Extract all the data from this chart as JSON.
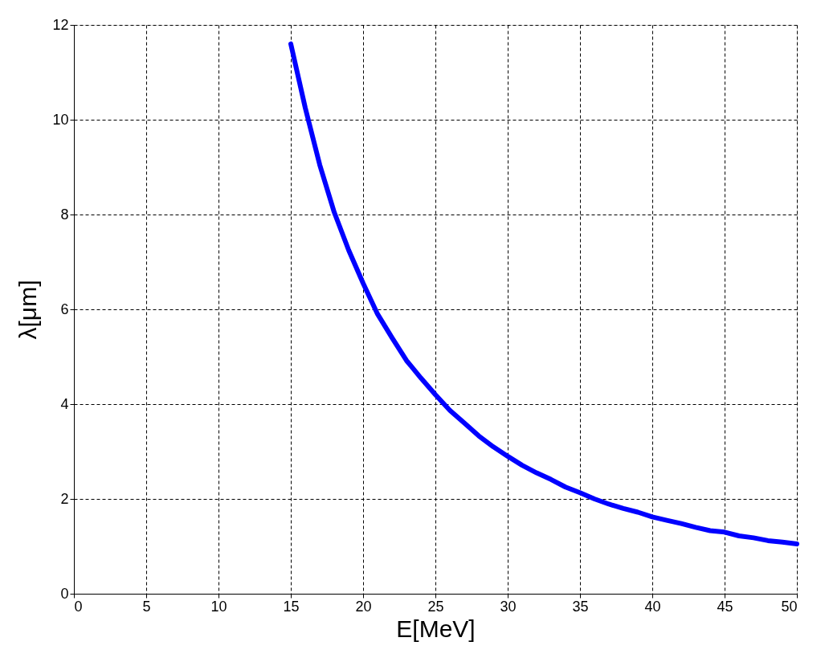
{
  "chart_data": {
    "type": "line",
    "xlabel": "E[MeV]",
    "ylabel": "λ[μm]",
    "x": [
      15,
      16,
      17,
      18,
      19,
      20,
      21,
      22,
      23,
      24,
      25,
      26,
      27,
      28,
      29,
      30,
      31,
      32,
      33,
      34,
      35,
      36,
      37,
      38,
      39,
      40,
      41,
      42,
      43,
      44,
      45,
      46,
      47,
      48,
      49,
      50
    ],
    "series": [
      {
        "color": "#0000ff",
        "values": [
          11.6,
          10.25,
          9.05,
          8.05,
          7.25,
          6.55,
          5.9,
          5.4,
          4.92,
          4.55,
          4.2,
          3.87,
          3.6,
          3.33,
          3.1,
          2.9,
          2.71,
          2.55,
          2.41,
          2.25,
          2.13,
          2.0,
          1.89,
          1.8,
          1.72,
          1.62,
          1.55,
          1.48,
          1.4,
          1.33,
          1.3,
          1.22,
          1.18,
          1.12,
          1.09,
          1.05
        ]
      }
    ],
    "xlim": [
      0,
      50
    ],
    "xticks": [
      0,
      5,
      10,
      15,
      20,
      25,
      30,
      35,
      40,
      45,
      50
    ],
    "ylim": [
      0,
      12
    ],
    "yticks": [
      0,
      2,
      4,
      6,
      8,
      10,
      12
    ],
    "grid": true,
    "legend": false,
    "marker": "none",
    "line_style": "solid"
  }
}
